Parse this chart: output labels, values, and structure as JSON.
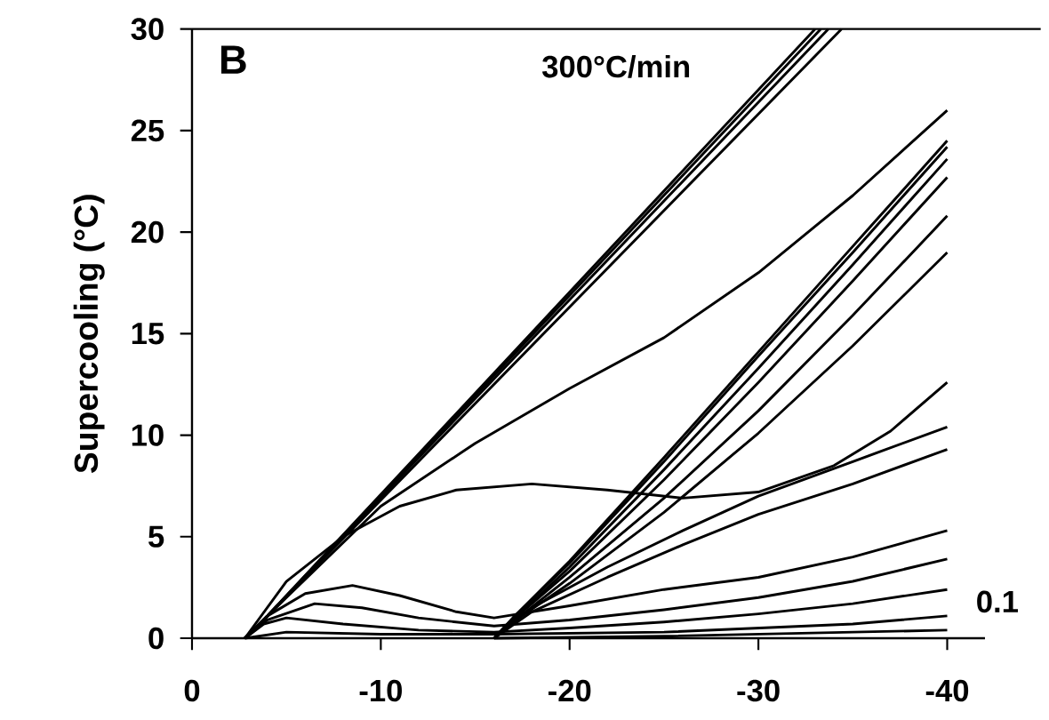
{
  "chart_data": {
    "type": "line",
    "ylabel": "Supercooling (°C)",
    "xlim": [
      0,
      -42
    ],
    "ylim": [
      0,
      30
    ],
    "xticks": [
      0,
      -10,
      -20,
      -30,
      -40
    ],
    "yticks": [
      0,
      5,
      10,
      15,
      20,
      25,
      30
    ],
    "grid": false,
    "marker": "none",
    "line_style": "solid",
    "annotations": [
      "B",
      "300°C/min",
      "0.1"
    ],
    "series": [
      {
        "color": "#000000",
        "x": [
          -2.8,
          -4,
          -33.0
        ],
        "values": [
          0,
          1.1,
          30
        ]
      },
      {
        "color": "#000000",
        "x": [
          -2.8,
          -4,
          -33.3
        ],
        "values": [
          0,
          1.1,
          30
        ]
      },
      {
        "color": "#000000",
        "x": [
          -2.8,
          -4,
          -33.7
        ],
        "values": [
          0,
          1.1,
          30
        ]
      },
      {
        "color": "#000000",
        "x": [
          -2.8,
          -4,
          -34.4
        ],
        "values": [
          0,
          1.1,
          30
        ]
      },
      {
        "color": "#000000",
        "x": [
          -2.8,
          -5,
          -10,
          -15,
          -20,
          -25,
          -30,
          -35,
          -40
        ],
        "values": [
          0,
          2,
          6.5,
          9.6,
          12.3,
          14.8,
          18,
          21.8,
          26
        ]
      },
      {
        "color": "#000000",
        "x": [
          -2.8,
          -5,
          -8,
          -11,
          -14,
          -18,
          -22,
          -26,
          -30,
          -34,
          -37,
          -40
        ],
        "values": [
          0,
          2.8,
          5,
          6.5,
          7.3,
          7.6,
          7.3,
          6.9,
          7.2,
          8.5,
          10.2,
          12.6
        ]
      },
      {
        "color": "#000000",
        "x": [
          -2.8,
          -4,
          -6,
          -8.5,
          -11,
          -14,
          -16,
          -20,
          -25,
          -30,
          -35,
          -40
        ],
        "values": [
          0,
          1.1,
          2.2,
          2.6,
          2.1,
          1.3,
          1.0,
          1.6,
          2.4,
          3.0,
          4.0,
          5.3
        ]
      },
      {
        "color": "#000000",
        "x": [
          -2.8,
          -4,
          -6.5,
          -9,
          -12,
          -16,
          -20,
          -25,
          -30,
          -35,
          -40
        ],
        "values": [
          0,
          0.9,
          1.7,
          1.5,
          1.0,
          0.6,
          0.9,
          1.4,
          2.0,
          2.8,
          3.9
        ]
      },
      {
        "color": "#000000",
        "x": [
          -2.8,
          -3.8,
          -5,
          -8,
          -12,
          -16,
          -20,
          -25,
          -30,
          -35,
          -40
        ],
        "values": [
          0,
          0.7,
          1.0,
          0.7,
          0.4,
          0.3,
          0.5,
          0.8,
          1.2,
          1.7,
          2.4
        ]
      },
      {
        "color": "#000000",
        "x": [
          -2.8,
          -5,
          -10,
          -16,
          -25,
          -35,
          -40
        ],
        "values": [
          0,
          0.3,
          0.2,
          0.2,
          0.3,
          0.7,
          1.1
        ]
      },
      {
        "color": "#000000",
        "x": [
          -16,
          -25,
          -40
        ],
        "values": [
          0,
          0.1,
          0.4
        ]
      },
      {
        "color": "#000000",
        "x": [
          -16,
          -17,
          -20,
          -25,
          -30,
          -35,
          -40
        ],
        "values": [
          0,
          1.0,
          3.8,
          8.9,
          14.1,
          19.3,
          24.5
        ]
      },
      {
        "color": "#000000",
        "x": [
          -16,
          -17,
          -20,
          -25,
          -30,
          -35,
          -40
        ],
        "values": [
          0,
          1.0,
          3.7,
          8.7,
          13.9,
          19.0,
          24.2
        ]
      },
      {
        "color": "#000000",
        "x": [
          -16,
          -17,
          -20,
          -25,
          -30,
          -35,
          -40
        ],
        "values": [
          0,
          0.9,
          3.5,
          8.3,
          13.3,
          18.4,
          23.6
        ]
      },
      {
        "color": "#000000",
        "x": [
          -16,
          -17,
          -20,
          -25,
          -30,
          -35,
          -40
        ],
        "values": [
          0,
          0.9,
          3.3,
          7.8,
          12.6,
          17.6,
          22.7
        ]
      },
      {
        "color": "#000000",
        "x": [
          -16,
          -17,
          -20,
          -25,
          -30,
          -35,
          -40
        ],
        "values": [
          0,
          0.8,
          3.0,
          6.9,
          11.2,
          15.9,
          20.8
        ]
      },
      {
        "color": "#000000",
        "x": [
          -16,
          -17,
          -20,
          -25,
          -30,
          -35,
          -40
        ],
        "values": [
          0,
          0.8,
          2.7,
          6.2,
          10.1,
          14.4,
          19.0
        ]
      },
      {
        "color": "#000000",
        "x": [
          -16,
          -18,
          -22,
          -26,
          -30,
          -35,
          -40
        ],
        "values": [
          0,
          1.5,
          3.5,
          5.3,
          7.0,
          8.7,
          10.4
        ]
      },
      {
        "color": "#000000",
        "x": [
          -16,
          -18,
          -22,
          -26,
          -30,
          -35,
          -40
        ],
        "values": [
          0,
          1.3,
          3.0,
          4.6,
          6.1,
          7.6,
          9.3
        ]
      }
    ]
  }
}
